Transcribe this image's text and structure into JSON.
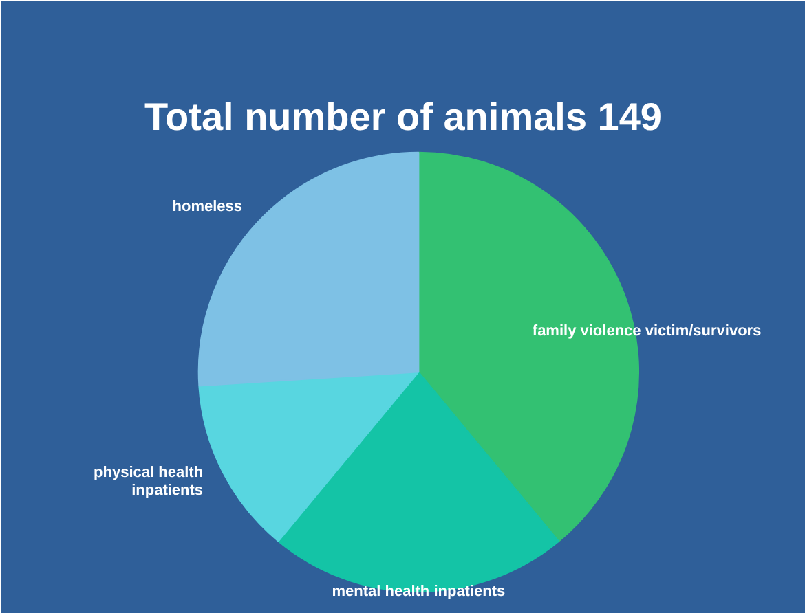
{
  "chart_data": {
    "type": "pie",
    "title": "Total number of animals 149",
    "categories": [
      "family violence victim/survivors",
      "mental health inpatients",
      "physical health\ninpatients",
      "homeless"
    ],
    "values": [
      39,
      22,
      13,
      26
    ],
    "colors": [
      "#33c172",
      "#14c4a6",
      "#58d6e0",
      "#7ec1e5"
    ]
  }
}
